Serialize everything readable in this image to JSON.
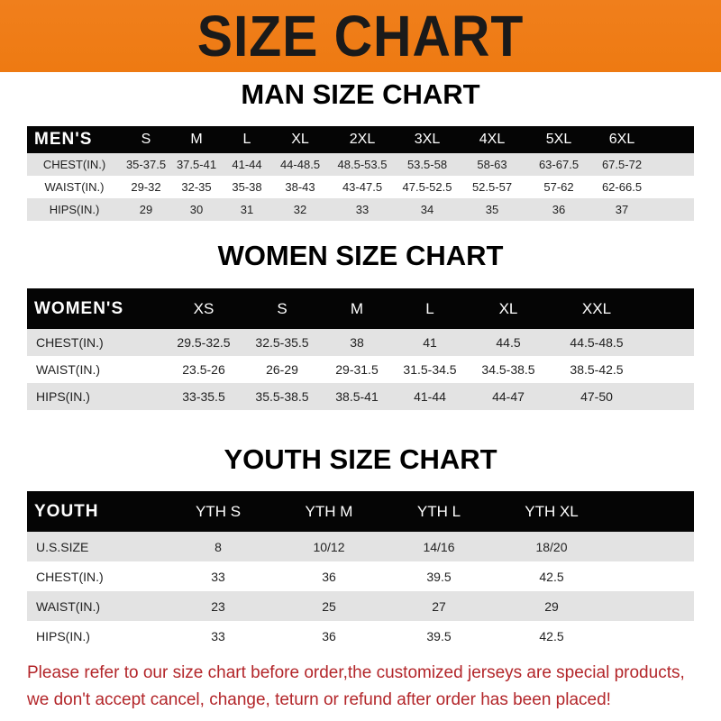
{
  "banner": {
    "title": "SIZE CHART",
    "color": "#ef7d17"
  },
  "men": {
    "title": "MAN SIZE CHART",
    "header": [
      "MEN'S",
      "S",
      "M",
      "L",
      "XL",
      "2XL",
      "3XL",
      "4XL",
      "5XL",
      "6XL"
    ],
    "rows": [
      [
        "CHEST(IN.)",
        "35-37.5",
        "37.5-41",
        "41-44",
        "44-48.5",
        "48.5-53.5",
        "53.5-58",
        "58-63",
        "63-67.5",
        "67.5-72"
      ],
      [
        "WAIST(IN.)",
        "29-32",
        "32-35",
        "35-38",
        "38-43",
        "43-47.5",
        "47.5-52.5",
        "52.5-57",
        "57-62",
        "62-66.5"
      ],
      [
        "HIPS(IN.)",
        "29",
        "30",
        "31",
        "32",
        "33",
        "34",
        "35",
        "36",
        "37"
      ]
    ]
  },
  "women": {
    "title": "WOMEN SIZE CHART",
    "header": [
      "WOMEN'S",
      "XS",
      "S",
      "M",
      "L",
      "XL",
      "XXL"
    ],
    "rows": [
      [
        "CHEST(IN.)",
        "29.5-32.5",
        "32.5-35.5",
        "38",
        "41",
        "44.5",
        "44.5-48.5"
      ],
      [
        "WAIST(IN.)",
        "23.5-26",
        "26-29",
        "29-31.5",
        "31.5-34.5",
        "34.5-38.5",
        "38.5-42.5"
      ],
      [
        "HIPS(IN.)",
        "33-35.5",
        "35.5-38.5",
        "38.5-41",
        "41-44",
        "44-47",
        "47-50"
      ]
    ]
  },
  "youth": {
    "title": "YOUTH SIZE CHART",
    "header": [
      "YOUTH",
      "YTH S",
      "YTH M",
      "YTH L",
      "YTH XL"
    ],
    "rows": [
      [
        "U.S.SIZE",
        "8",
        "10/12",
        "14/16",
        "18/20"
      ],
      [
        "CHEST(IN.)",
        "33",
        "36",
        "39.5",
        "42.5"
      ],
      [
        "WAIST(IN.)",
        "23",
        "25",
        "27",
        "29"
      ],
      [
        "HIPS(IN.)",
        "33",
        "36",
        "39.5",
        "42.5"
      ]
    ]
  },
  "note": {
    "line1": "Please refer to our size chart before order,the customized jerseys are special products,",
    "line2": "we don't accept cancel, change, teturn or refund after order has been placed!",
    "color": "#b3262a"
  }
}
